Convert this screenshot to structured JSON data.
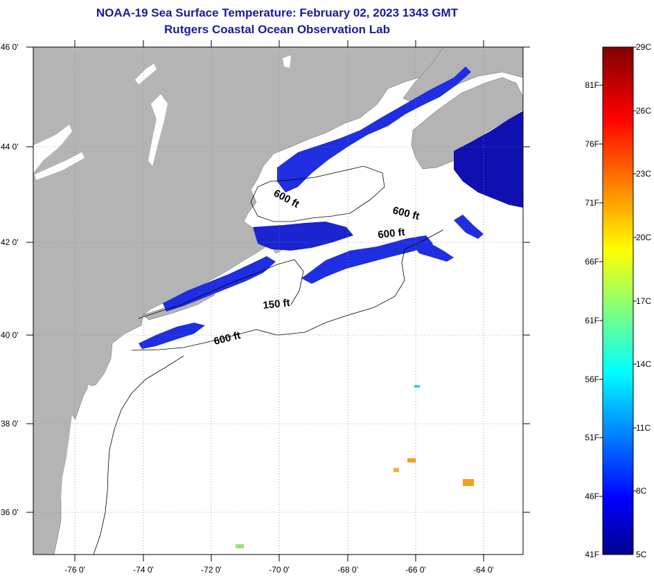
{
  "header": {
    "title": "NOAA-19 Sea Surface Temperature:  February 02, 2023 1343 GMT",
    "subtitle": "Rutgers Coastal Ocean Observation Lab"
  },
  "axes": {
    "lat_labels": [
      "46 0'",
      "44 0'",
      "42 0'",
      "40 0'",
      "38 0'",
      "36 0'"
    ],
    "lon_labels": [
      "-76 0'",
      "-74 0'",
      "-72 0'",
      "-70 0'",
      "-68 0'",
      "-66 0'",
      "-64 0'"
    ]
  },
  "contours": {
    "labels": [
      "600 ft",
      "600 ft",
      "600 ft",
      "150 ft",
      "600 ft"
    ]
  },
  "colorbar": {
    "fahrenheit_labels": [
      "81F",
      "76F",
      "71F",
      "66F",
      "61F",
      "56F",
      "51F",
      "46F",
      "41F"
    ],
    "celsius_labels": [
      "29C",
      "26C",
      "23C",
      "20C",
      "17C",
      "14C",
      "11C",
      "8C",
      "5C"
    ]
  },
  "colors": {
    "title": "#1a1aa0",
    "land": "#b4b4b4",
    "ocean_nodata": "#ffffff",
    "cold_water": "#1e2ee0",
    "deep_cold": "#1010b0"
  }
}
